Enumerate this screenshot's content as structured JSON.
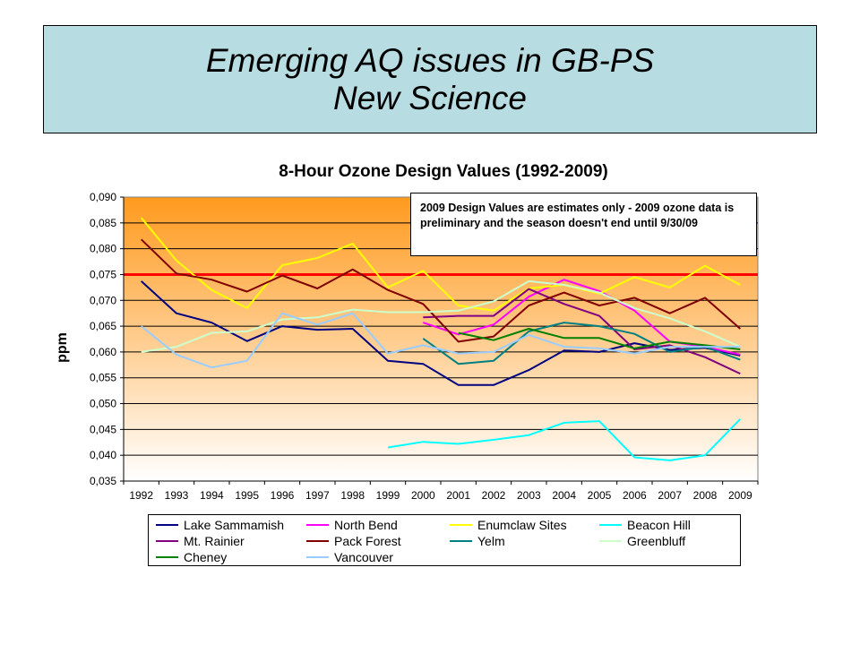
{
  "slide": {
    "title_line1": "Emerging AQ issues in GB-PS",
    "title_line2": "New Science"
  },
  "annotation": "2009 Design Values are estimates only - 2009 ozone data is preliminary and the season doesn't end until 9/30/09",
  "colors": {
    "background_top": "#ff9a1e",
    "background_bottom": "#ffffff",
    "standard_line": "#ff0000"
  },
  "chart_data": {
    "type": "line",
    "title": "8-Hour Ozone Design Values (1992-2009)",
    "xlabel": "",
    "ylabel": "ppm",
    "ylim": [
      0.035,
      0.09
    ],
    "yticks": [
      "0,035",
      "0,040",
      "0,045",
      "0,050",
      "0,055",
      "0,060",
      "0,065",
      "0,070",
      "0,075",
      "0,080",
      "0,085",
      "0,090"
    ],
    "x": [
      "1992",
      "1993",
      "1994",
      "1995",
      "1996",
      "1997",
      "1998",
      "1999",
      "2000",
      "2001",
      "2002",
      "2003",
      "2004",
      "2005",
      "2006",
      "2007",
      "2008",
      "2009"
    ],
    "reference_line": {
      "value": 0.075,
      "color": "#ff0000"
    },
    "grid": true,
    "legend_position": "bottom",
    "series": [
      {
        "name": "Lake Sammamish",
        "color": "#000080",
        "values": [
          0.0737,
          0.0675,
          0.0657,
          0.0621,
          0.065,
          0.0643,
          0.0645,
          0.0583,
          0.0577,
          0.0536,
          0.0536,
          0.0565,
          0.0603,
          0.06,
          0.0617,
          0.0604,
          0.0608,
          0.0593
        ]
      },
      {
        "name": "North Bend",
        "color": "#ff00ff",
        "values": [
          null,
          null,
          null,
          null,
          null,
          null,
          null,
          null,
          0.0657,
          0.0634,
          0.0653,
          0.0707,
          0.074,
          0.0718,
          0.068,
          0.062,
          0.061,
          0.0595
        ]
      },
      {
        "name": "Enumclaw Sites",
        "color": "#ffff00",
        "values": [
          0.086,
          0.0777,
          0.072,
          0.0685,
          0.0768,
          0.0782,
          0.081,
          0.0725,
          0.0757,
          0.069,
          0.068,
          0.0723,
          0.073,
          0.0713,
          0.0745,
          0.0725,
          0.0767,
          0.073
        ]
      },
      {
        "name": "Beacon Hill",
        "color": "#00ffff",
        "values": [
          null,
          null,
          null,
          null,
          null,
          null,
          null,
          0.0415,
          0.0426,
          0.0422,
          0.043,
          0.0439,
          0.0463,
          0.0466,
          0.0396,
          0.039,
          0.04,
          0.047
        ]
      },
      {
        "name": "Mt. Rainier",
        "color": "#800080",
        "values": [
          null,
          null,
          null,
          null,
          null,
          null,
          null,
          null,
          0.0667,
          0.067,
          0.067,
          0.0722,
          0.0693,
          0.067,
          0.0605,
          0.0613,
          0.059,
          0.0558
        ]
      },
      {
        "name": "Pack Forest",
        "color": "#800000",
        "values": [
          0.0818,
          0.0752,
          0.074,
          0.0717,
          0.0748,
          0.0723,
          0.076,
          0.072,
          0.0693,
          0.062,
          0.063,
          0.069,
          0.0715,
          0.069,
          0.0705,
          0.0675,
          0.0705,
          0.0645
        ]
      },
      {
        "name": "Yelm",
        "color": "#008080",
        "values": [
          null,
          null,
          null,
          null,
          null,
          null,
          null,
          null,
          0.0626,
          0.0577,
          0.0583,
          0.064,
          0.0657,
          0.065,
          0.0635,
          0.06,
          0.061,
          0.0585
        ]
      },
      {
        "name": "Greenbluff",
        "color": "#ccffcc",
        "values": [
          0.06,
          0.061,
          0.0637,
          0.064,
          0.0663,
          0.0667,
          0.0682,
          0.0677,
          0.0677,
          0.068,
          0.0698,
          0.0737,
          0.073,
          0.0715,
          0.0685,
          0.0665,
          0.064,
          0.061
        ]
      },
      {
        "name": "Cheney",
        "color": "#008000",
        "values": [
          null,
          null,
          null,
          null,
          null,
          null,
          null,
          null,
          null,
          0.0637,
          0.0623,
          0.0645,
          0.0627,
          0.0627,
          0.0607,
          0.062,
          0.0613,
          0.0605
        ]
      },
      {
        "name": "Vancouver",
        "color": "#99ccff",
        "values": [
          0.065,
          0.0595,
          0.057,
          0.0583,
          0.0675,
          0.0653,
          0.0675,
          0.0597,
          0.0613,
          0.0597,
          0.06,
          0.0633,
          0.061,
          0.0607,
          0.0597,
          0.061,
          0.061,
          0.061
        ]
      }
    ]
  }
}
